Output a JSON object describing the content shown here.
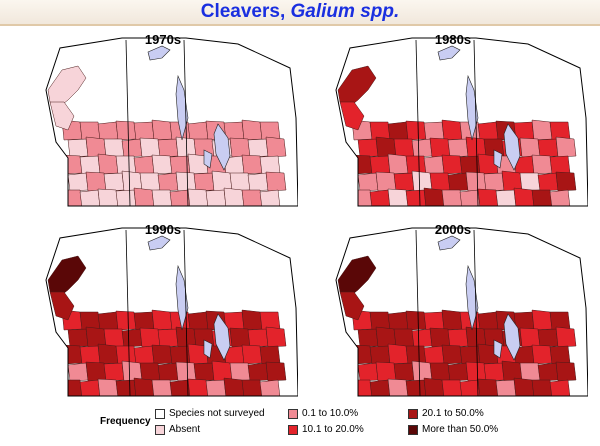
{
  "title": {
    "main": "Cleavers,",
    "italic": "Galium spp."
  },
  "colors": {
    "not_surveyed": "#ffffff",
    "absent": "#f7d4d9",
    "c1": "#f08a94",
    "c2": "#e3232b",
    "c3": "#a81515",
    "c4": "#5a0707",
    "water": "#c9cdf2",
    "border": "#000000"
  },
  "panels": [
    {
      "title": "1970s"
    },
    {
      "title": "1980s"
    },
    {
      "title": "1990s"
    },
    {
      "title": "2000s"
    }
  ],
  "legend": {
    "title": "Frequency",
    "items": [
      {
        "label": "Species not surveyed",
        "color": "#ffffff"
      },
      {
        "label": "Absent",
        "color": "#f7d4d9"
      },
      {
        "label": "0.1 to 10.0%",
        "color": "#f08a94"
      },
      {
        "label": "10.1 to 20.0%",
        "color": "#e3232b"
      },
      {
        "label": "20.1 to 50.0%",
        "color": "#a81515"
      },
      {
        "label": "More than 50.0%",
        "color": "#5a0707"
      }
    ]
  }
}
